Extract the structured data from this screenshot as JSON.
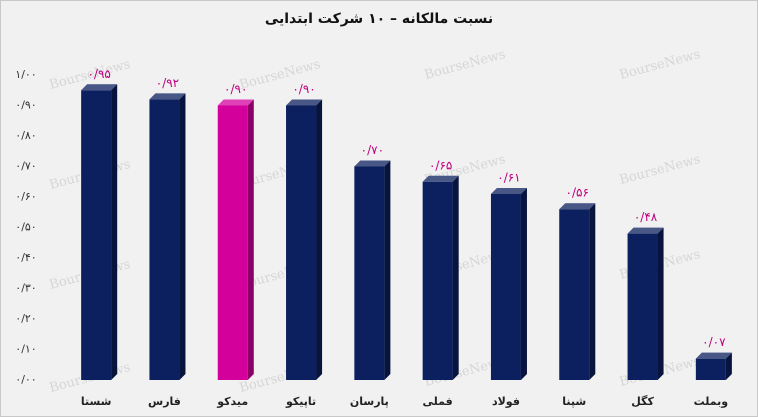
{
  "chart_data": {
    "type": "bar3d",
    "title": "نسبت مالکانه – ۱۰ شرکت ابتدایی",
    "watermark": "BourseNews",
    "categories": [
      "شستا",
      "فارس",
      "میدکو",
      "تاپیکو",
      "پارسان",
      "فملی",
      "فولاد",
      "شپنا",
      "کگل",
      "وبملت"
    ],
    "values": [
      0.95,
      0.92,
      0.9,
      0.9,
      0.7,
      0.65,
      0.61,
      0.56,
      0.48,
      0.07
    ],
    "value_labels": [
      "۰/۹۵",
      "۰/۹۲",
      "۰/۹۰",
      "۰/۹۰",
      "۰/۷۰",
      "۰/۶۵",
      "۰/۶۱",
      "۰/۵۶",
      "۰/۴۸",
      "۰/۰۷"
    ],
    "colors": [
      "#0c1f5e",
      "#0c1f5e",
      "#d4009c",
      "#0c1f5e",
      "#0c1f5e",
      "#0c1f5e",
      "#0c1f5e",
      "#0c1f5e",
      "#0c1f5e",
      "#0c1f5e"
    ],
    "label_color": "#c0007f",
    "ylim": [
      0,
      1
    ],
    "yticks": [
      {
        "value": 0,
        "label": "۰/۰۰"
      },
      {
        "value": 0.1,
        "label": "۰/۱۰"
      },
      {
        "value": 0.2,
        "label": "۰/۲۰"
      },
      {
        "value": 0.3,
        "label": "۰/۳۰"
      },
      {
        "value": 0.4,
        "label": "۰/۴۰"
      },
      {
        "value": 0.5,
        "label": "۰/۵۰"
      },
      {
        "value": 0.6,
        "label": "۰/۶۰"
      },
      {
        "value": 0.7,
        "label": "۰/۷۰"
      },
      {
        "value": 0.8,
        "label": "۰/۸۰"
      },
      {
        "value": 0.9,
        "label": "۰/۹۰"
      },
      {
        "value": 1,
        "label": "۱/۰۰"
      }
    ],
    "grid": false
  }
}
